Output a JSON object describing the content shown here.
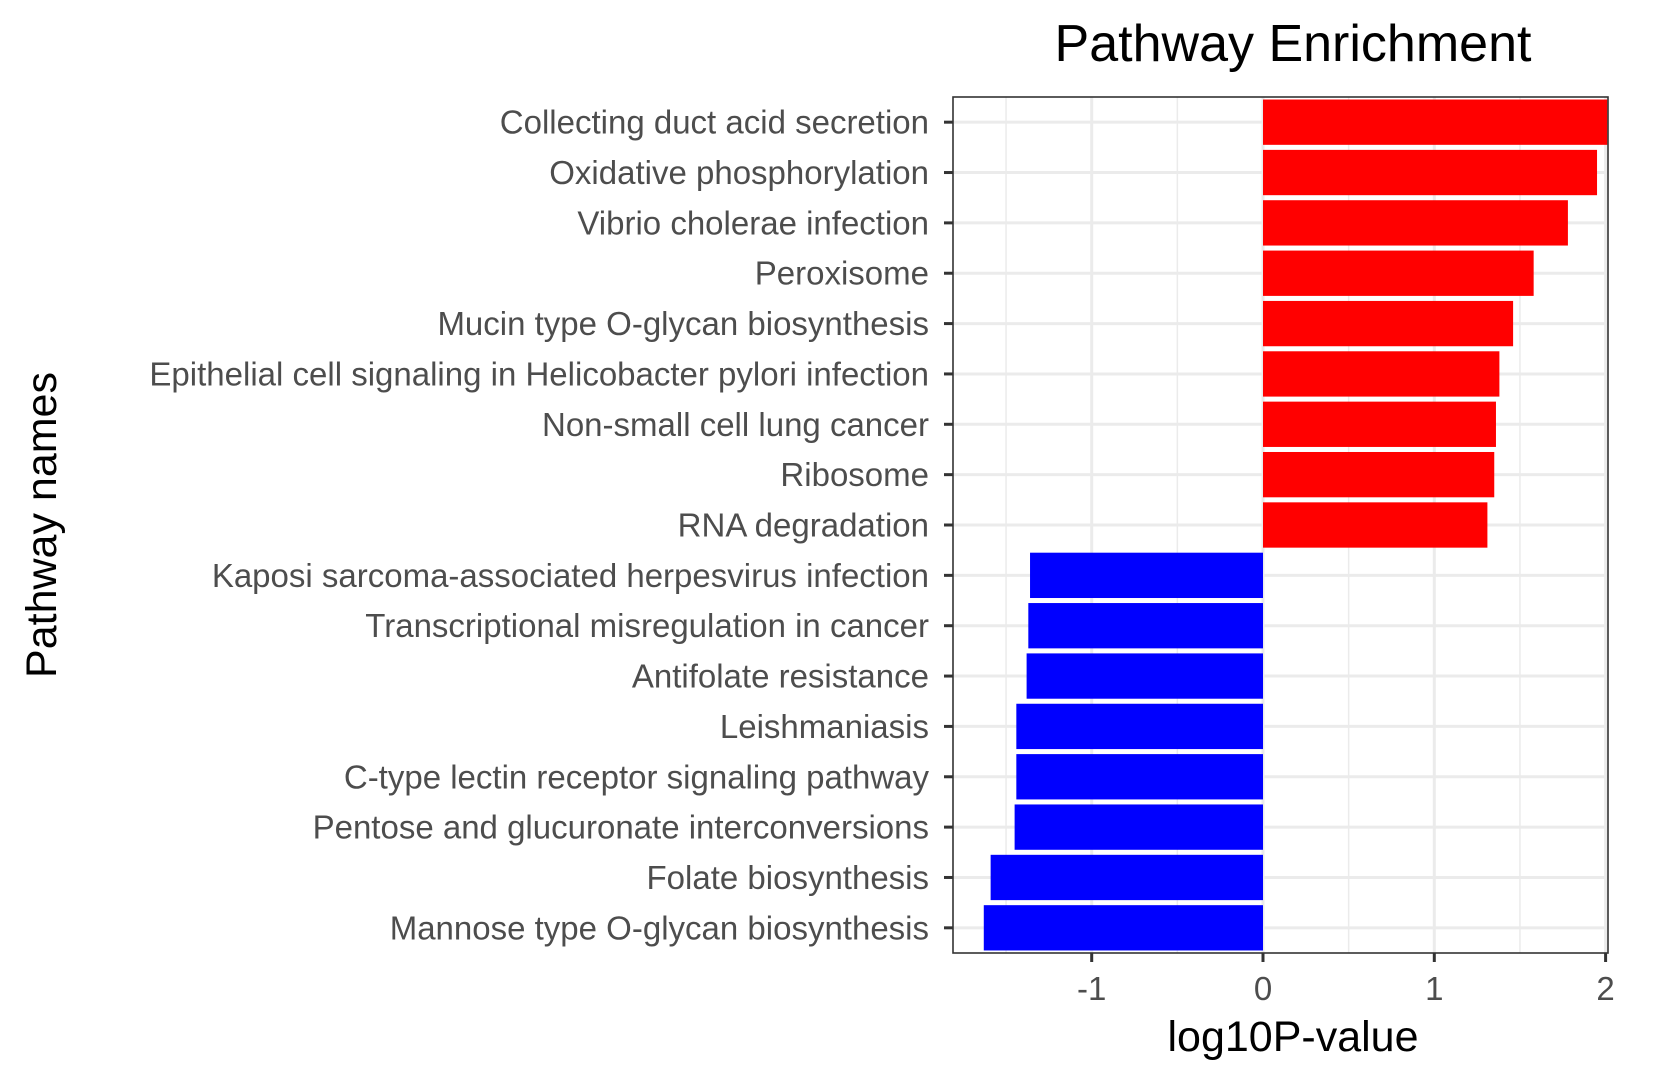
{
  "chart_data": {
    "type": "bar",
    "orientation": "horizontal",
    "title": "Pathway Enrichment",
    "xlabel": "log10P-value",
    "ylabel": "Pathway names",
    "xlim": [
      -1.83,
      2.2
    ],
    "xticks": [
      -1,
      0,
      1,
      2
    ],
    "xtick_labels": [
      "-1",
      "0",
      "1",
      "2"
    ],
    "grid": true,
    "legend": "none",
    "colors": {
      "positive": "#ff0000",
      "negative": "#0000ff"
    },
    "categories": [
      "Collecting duct acid secretion",
      "Oxidative phosphorylation",
      "Vibrio cholerae infection",
      "Peroxisome",
      "Mucin type O-glycan biosynthesis",
      "Epithelial cell signaling in Helicobacter pylori infection",
      "Non-small cell lung cancer",
      "Ribosome",
      "RNA degradation",
      "Kaposi sarcoma-associated herpesvirus infection",
      "Transcriptional misregulation in cancer",
      "Antifolate resistance",
      "Leishmaniasis",
      "C-type lectin receptor signaling pathway",
      "Pentose and glucuronate interconversions",
      "Folate biosynthesis",
      "Mannose type O-glycan biosynthesis"
    ],
    "values": [
      2.01,
      1.95,
      1.78,
      1.58,
      1.46,
      1.38,
      1.36,
      1.35,
      1.31,
      -1.36,
      -1.37,
      -1.38,
      -1.44,
      -1.44,
      -1.45,
      -1.59,
      -1.63
    ]
  }
}
